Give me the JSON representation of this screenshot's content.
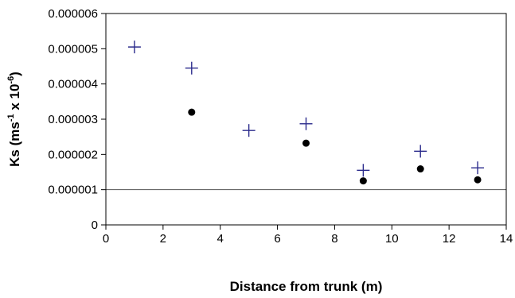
{
  "chart_data": {
    "type": "scatter",
    "title": "",
    "xlabel": "Distance from trunk (m)",
    "ylabel": {
      "prefix": "Ks (ms",
      "sup1": "-1",
      "middle": " x 10",
      "sup2": "-6",
      "suffix": ")"
    },
    "xlim": [
      0,
      14
    ],
    "ylim": [
      0,
      6e-06
    ],
    "x_ticks": [
      0,
      2,
      4,
      6,
      8,
      10,
      12,
      14
    ],
    "x_tick_labels": [
      "0",
      "2",
      "4",
      "6",
      "8",
      "10",
      "12",
      "14"
    ],
    "y_ticks": [
      0,
      1e-06,
      2e-06,
      3e-06,
      4e-06,
      5e-06,
      6e-06
    ],
    "y_tick_labels": [
      "0",
      "0.000001",
      "0.000002",
      "0.000003",
      "0.000004",
      "0.000005",
      "0.000006"
    ],
    "grid": false,
    "reference_line": {
      "y": 1e-06,
      "color": "#555555"
    },
    "series": [
      {
        "marker": "plus",
        "color": "#2b2b8c",
        "points": [
          {
            "x": 1,
            "y": 5.05e-06
          },
          {
            "x": 3,
            "y": 4.45e-06
          },
          {
            "x": 5,
            "y": 2.68e-06
          },
          {
            "x": 7,
            "y": 2.87e-06
          },
          {
            "x": 9,
            "y": 1.55e-06
          },
          {
            "x": 11,
            "y": 2.09e-06
          },
          {
            "x": 13,
            "y": 1.62e-06
          }
        ]
      },
      {
        "marker": "circle",
        "color": "#000000",
        "points": [
          {
            "x": 3,
            "y": 3.2e-06
          },
          {
            "x": 7,
            "y": 2.32e-06
          },
          {
            "x": 9,
            "y": 1.25e-06
          },
          {
            "x": 11,
            "y": 1.59e-06
          },
          {
            "x": 13,
            "y": 1.28e-06
          }
        ]
      }
    ]
  }
}
